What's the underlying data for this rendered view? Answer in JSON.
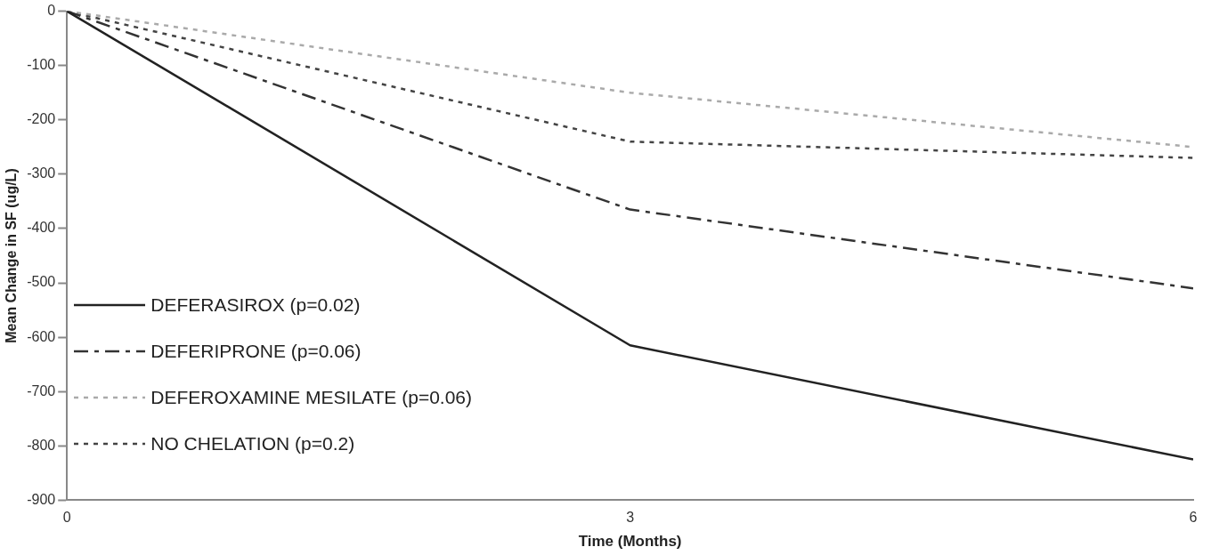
{
  "chart_data": {
    "type": "line",
    "xlabel": "Time (Months)",
    "ylabel": "Mean Change in SF (ug/L)",
    "x": [
      0,
      3,
      6
    ],
    "xlim": [
      0,
      6
    ],
    "xticks": [
      0,
      3,
      6
    ],
    "ylim": [
      -900,
      0
    ],
    "yticks": [
      -900,
      -800,
      -700,
      -600,
      -500,
      -400,
      -300,
      -200,
      -100,
      0
    ],
    "grid": false,
    "legend": "bottom left",
    "marker": "none",
    "series": [
      {
        "name": "DEFERASIROX (p=0.02)",
        "color": "#222222",
        "line_style": "solid",
        "values": [
          0,
          -615,
          -825
        ]
      },
      {
        "name": "DEFERIPRONE (p=0.06)",
        "color": "#333333",
        "line_style": "dashed",
        "values": [
          0,
          -365,
          -510
        ]
      },
      {
        "name": "DEFEROXAMINE MESILATE (p=0.06)",
        "color": "#aaaaaa",
        "line_style": "dotted",
        "values": [
          0,
          -150,
          -250
        ]
      },
      {
        "name": "NO CHELATION (p=0.2)",
        "color": "#444444",
        "line_style": "dotted",
        "values": [
          0,
          -240,
          -270
        ]
      }
    ]
  }
}
